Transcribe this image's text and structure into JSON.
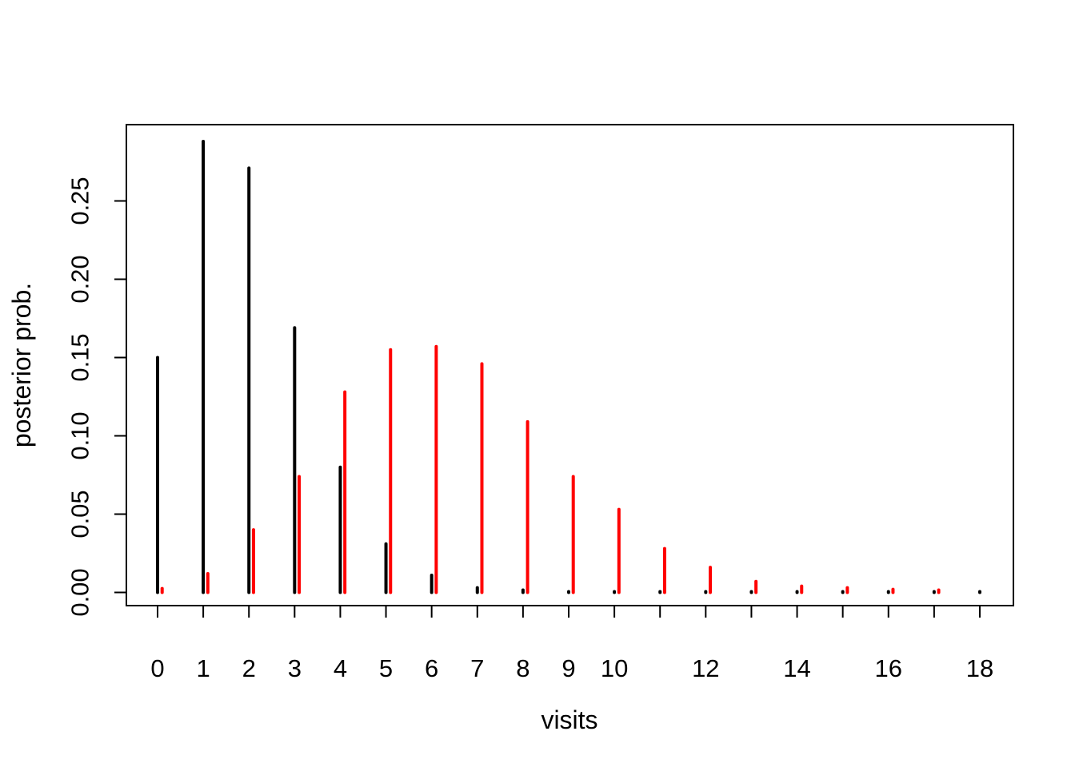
{
  "chart_data": {
    "type": "bar",
    "subtype": "spike-plot-two-series",
    "title": "",
    "xlabel": "visits",
    "ylabel": "posterior prob.",
    "x": [
      0,
      1,
      2,
      3,
      4,
      5,
      6,
      7,
      8,
      9,
      10,
      11,
      12,
      13,
      14,
      15,
      16,
      17,
      18
    ],
    "series": [
      {
        "name": "black",
        "color": "#000000",
        "x_offset": 0,
        "values": [
          0.15,
          0.288,
          0.271,
          0.169,
          0.08,
          0.031,
          0.011,
          0.003,
          0.0015,
          0.0005,
          0.0005,
          0.0005,
          0.0005,
          0.0005,
          0.0005,
          0.0005,
          0.0005,
          0.0005,
          0.0005
        ]
      },
      {
        "name": "red",
        "color": "#ff0000",
        "x_offset": 0.1,
        "values": [
          0.0025,
          0.012,
          0.04,
          0.074,
          0.128,
          0.155,
          0.157,
          0.146,
          0.109,
          0.074,
          0.053,
          0.028,
          0.016,
          0.007,
          0.004,
          0.003,
          0.002,
          0.0015,
          0
        ]
      }
    ],
    "x_ticks": [
      0,
      1,
      2,
      3,
      4,
      5,
      6,
      7,
      8,
      9,
      10,
      11,
      12,
      13,
      14,
      15,
      16,
      17,
      18
    ],
    "x_tick_labels": [
      {
        "x": 0,
        "text": "0"
      },
      {
        "x": 1,
        "text": "1"
      },
      {
        "x": 2,
        "text": "2"
      },
      {
        "x": 3,
        "text": "3"
      },
      {
        "x": 4,
        "text": "4"
      },
      {
        "x": 5,
        "text": "5"
      },
      {
        "x": 6,
        "text": "6"
      },
      {
        "x": 7,
        "text": "7"
      },
      {
        "x": 8,
        "text": "8"
      },
      {
        "x": 9,
        "text": "9"
      },
      {
        "x": 10,
        "text": "10"
      },
      {
        "x": 12,
        "text": "12"
      },
      {
        "x": 14,
        "text": "14"
      },
      {
        "x": 16,
        "text": "16"
      },
      {
        "x": 18,
        "text": "18"
      }
    ],
    "y_ticks": [
      {
        "v": 0.0,
        "text": "0.00"
      },
      {
        "v": 0.05,
        "text": "0.05"
      },
      {
        "v": 0.1,
        "text": "0.10"
      },
      {
        "v": 0.15,
        "text": "0.15"
      },
      {
        "v": 0.2,
        "text": "0.20"
      },
      {
        "v": 0.25,
        "text": "0.25"
      }
    ],
    "xlim": [
      0,
      18
    ],
    "ylim": [
      0,
      0.3
    ],
    "grid": false,
    "legend": null,
    "background": "#ffffff",
    "axis_color": "#000000"
  }
}
